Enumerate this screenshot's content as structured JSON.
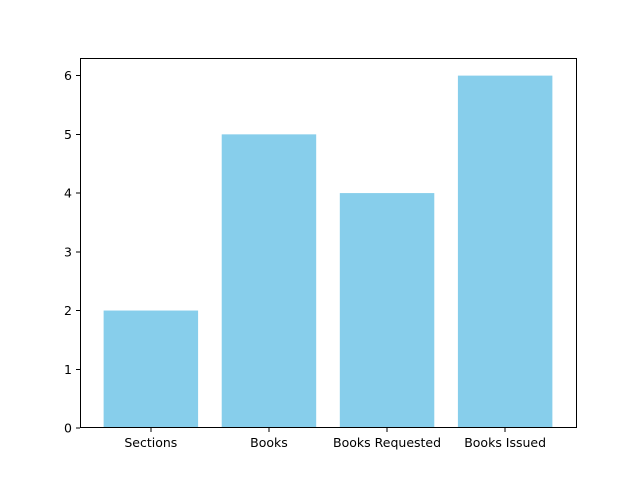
{
  "chart_data": {
    "type": "bar",
    "categories": [
      "Sections",
      "Books",
      "Books Requested",
      "Books Issued"
    ],
    "values": [
      2,
      5,
      4,
      6
    ],
    "title": "",
    "xlabel": "",
    "ylabel": "",
    "ylim": [
      0,
      6.3
    ],
    "yticks": [
      0,
      1,
      2,
      3,
      4,
      5,
      6
    ],
    "grid": false,
    "bar_color": "#87CEEB"
  }
}
